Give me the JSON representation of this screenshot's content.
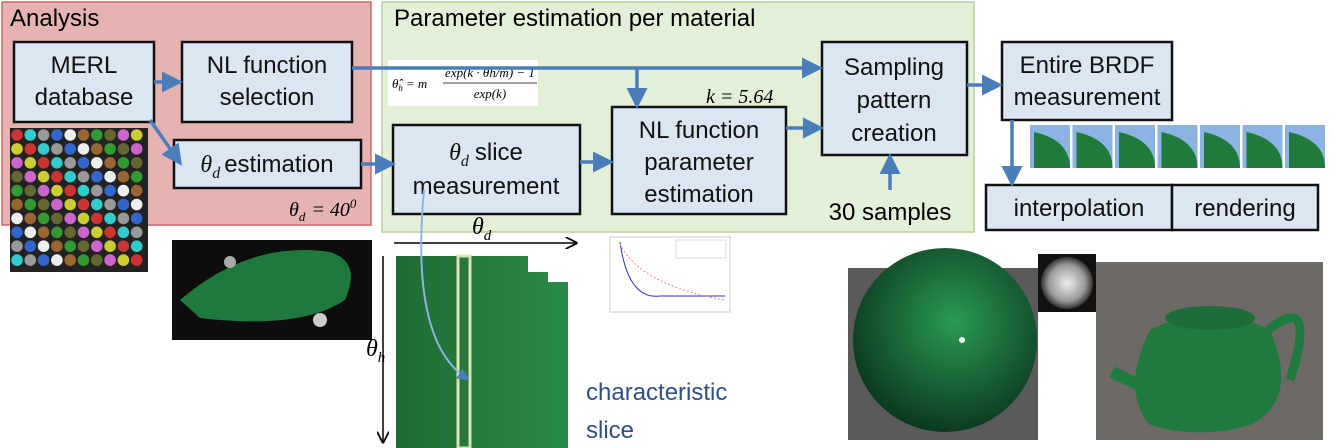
{
  "regions": {
    "analysis": "Analysis",
    "parameter": "Parameter estimation per material"
  },
  "nodes": {
    "merl": [
      "MERL",
      "database"
    ],
    "nl_selection": [
      "NL function",
      "selection"
    ],
    "theta_estimation": {
      "symbol": "θ",
      "sub": "d",
      "text": "estimation"
    },
    "slice_measurement": {
      "symbol": "θ",
      "sub": "d",
      "line1": "slice",
      "line2": "measurement"
    },
    "nl_parameter": [
      "NL function",
      "parameter",
      "estimation"
    ],
    "sampling": [
      "Sampling",
      "pattern",
      "creation"
    ],
    "brdf": [
      "Entire BRDF",
      "measurement"
    ],
    "interpolation": "interpolation",
    "rendering": "rendering"
  },
  "annotations": {
    "theta_value": {
      "symbol": "θ",
      "sub": "d",
      "text": "= 40",
      "sup": "0"
    },
    "formula": {
      "lhs": "θ̂",
      "lhs_sub": "h",
      "eq": "= m",
      "numerator": "exp(k · θh/m) − 1",
      "denominator": "exp(k)"
    },
    "k_value": "k = 5.64",
    "samples": "30 samples",
    "axis_x": {
      "symbol": "θ",
      "sub": "d"
    },
    "axis_y": {
      "symbol": "θ",
      "sub": "h"
    },
    "characteristic": [
      "characteristic",
      "slice"
    ]
  }
}
